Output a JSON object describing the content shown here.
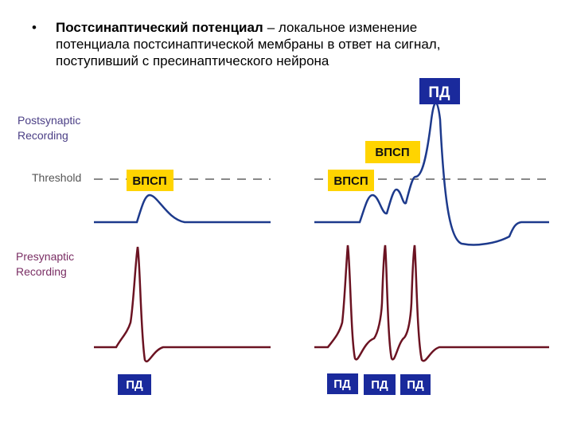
{
  "bullet": {
    "term": "Постсинаптический потенциал",
    "definition_lines": [
      "– локальное изменение",
      "потенциала постсинаптической мембраны в ответ на сигнал,",
      "поступивший с пресинаптического нейрона"
    ]
  },
  "side_labels": {
    "postsynaptic": [
      "Postsynaptic",
      "Recording"
    ],
    "threshold": "Threshold",
    "presynaptic": [
      "Presynaptic",
      "Recording"
    ]
  },
  "tags": {
    "pd_top": "ПД",
    "epsp_left": "ВПСП",
    "epsp_right_high": "ВПСП",
    "epsp_right_low": "ВПСП",
    "pd_bottom": [
      "ПД",
      "ПД",
      "ПД",
      "ПД"
    ]
  }
}
